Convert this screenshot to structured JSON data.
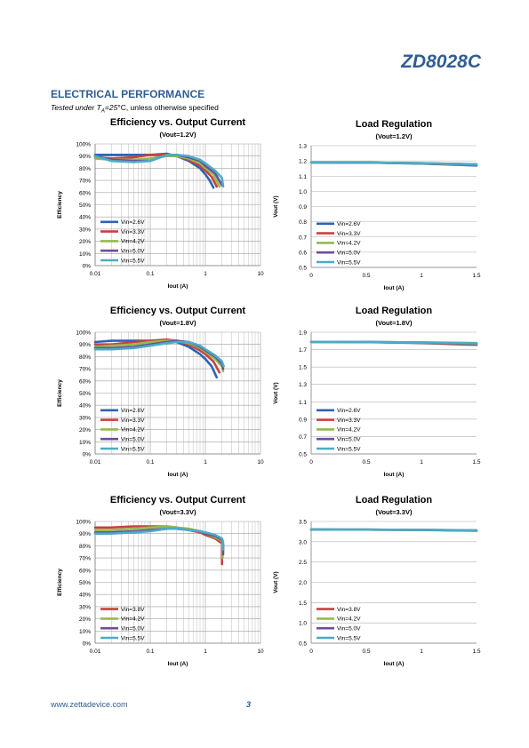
{
  "header": {
    "part_number": "ZD8028C"
  },
  "section": {
    "title": "ELECTRICAL PERFORMANCE",
    "tested_prefix": "Tested under ",
    "tested_t": "T",
    "tested_sub": "A",
    "tested_value": "=25",
    "tested_suffix": "°C, unless otherwise specified"
  },
  "footer": {
    "url": "www.zettadevice.com",
    "page": "3"
  },
  "colors": {
    "s26": "#2e63b6",
    "s33": "#c8413e",
    "s42": "#93ba4f",
    "s50": "#6e4d9b",
    "s55": "#4bacc6",
    "s38": "#c8413e"
  },
  "chart_data": [
    {
      "type": "line",
      "kind": "eff",
      "title": "Efficiency vs. Output Current",
      "subtitle": "(Vout=1.2V)",
      "xlabel": "Iout (A)",
      "ylabel": "Efficiency",
      "xscale": "log",
      "xlim": [
        0.01,
        10
      ],
      "ylim": [
        0,
        100
      ],
      "xticks": [
        "0.01",
        "0.1",
        "1",
        "10"
      ],
      "yticks": [
        "0%",
        "10%",
        "20%",
        "30%",
        "40%",
        "50%",
        "60%",
        "70%",
        "80%",
        "90%",
        "100%"
      ],
      "legend": "bottom-left",
      "series": [
        {
          "name": "Vin=2.6V",
          "color_key": "s26",
          "x": [
            0.01,
            0.02,
            0.05,
            0.1,
            0.2,
            0.3,
            0.5,
            0.8,
            1.0,
            1.2,
            1.4
          ],
          "y": [
            91,
            91,
            91,
            91,
            92,
            90,
            86,
            80,
            75,
            70,
            64
          ]
        },
        {
          "name": "Vin=3.3V",
          "color_key": "s33",
          "x": [
            0.01,
            0.02,
            0.05,
            0.1,
            0.2,
            0.3,
            0.5,
            0.8,
            1.0,
            1.3,
            1.6
          ],
          "y": [
            89,
            88,
            89,
            91,
            91,
            90,
            87,
            82,
            78,
            73,
            65
          ]
        },
        {
          "name": "Vin=4.2V",
          "color_key": "s42",
          "x": [
            0.01,
            0.02,
            0.05,
            0.1,
            0.2,
            0.3,
            0.5,
            0.8,
            1.0,
            1.4,
            1.8
          ],
          "y": [
            88,
            87,
            87,
            88,
            90,
            90,
            88,
            84,
            80,
            75,
            65
          ]
        },
        {
          "name": "Vin=5.0V",
          "color_key": "s50",
          "x": [
            0.01,
            0.02,
            0.05,
            0.1,
            0.2,
            0.3,
            0.5,
            0.8,
            1.0,
            1.5,
            2.0
          ],
          "y": [
            90,
            87,
            86,
            86,
            91,
            91,
            89,
            86,
            82,
            76,
            66
          ]
        },
        {
          "name": "Vin=5.5V",
          "color_key": "s55",
          "x": [
            0.01,
            0.02,
            0.05,
            0.1,
            0.2,
            0.3,
            0.5,
            0.8,
            1.0,
            1.5,
            2.0,
            2.1
          ],
          "y": [
            90,
            86,
            85,
            86,
            91,
            91,
            90,
            87,
            84,
            78,
            72,
            65
          ]
        }
      ]
    },
    {
      "type": "line",
      "kind": "reg",
      "title": "Load Regulation",
      "subtitle": "(Vout=1.2V)",
      "xlabel": "Iout (A)",
      "ylabel": "Vout (V)",
      "xscale": "linear",
      "xlim": [
        0,
        1.5
      ],
      "ylim": [
        0.5,
        1.3
      ],
      "xticks": [
        "0",
        "0.5",
        "1",
        "1.5"
      ],
      "yticks": [
        "0.5",
        "0.6",
        "0.7",
        "0.8",
        "0.9",
        "1.0",
        "1.1",
        "1.2",
        "1.3"
      ],
      "legend": "bottom-left",
      "series": [
        {
          "name": "Vin=2.6V",
          "color_key": "s26",
          "x": [
            0,
            0.5,
            1.0,
            1.5
          ],
          "y": [
            1.19,
            1.189,
            1.182,
            1.17
          ]
        },
        {
          "name": "Vin=3.3V",
          "color_key": "s33",
          "x": [
            0,
            0.5,
            1.0,
            1.5
          ],
          "y": [
            1.19,
            1.189,
            1.183,
            1.173
          ]
        },
        {
          "name": "Vin=4.2V",
          "color_key": "s42",
          "x": [
            0,
            0.5,
            1.0,
            1.5
          ],
          "y": [
            1.19,
            1.189,
            1.184,
            1.175
          ]
        },
        {
          "name": "Vin=5.0V",
          "color_key": "s50",
          "x": [
            0,
            0.5,
            1.0,
            1.5
          ],
          "y": [
            1.19,
            1.189,
            1.185,
            1.177
          ]
        },
        {
          "name": "Vin=5.5V",
          "color_key": "s55",
          "x": [
            0,
            0.5,
            1.0,
            1.5
          ],
          "y": [
            1.19,
            1.189,
            1.185,
            1.178
          ]
        }
      ]
    },
    {
      "type": "line",
      "kind": "eff",
      "title": "Efficiency vs. Output Current",
      "subtitle": "(Vout=1.8V)",
      "xlabel": "Iout (A)",
      "ylabel": "Efficiency",
      "xscale": "log",
      "xlim": [
        0.01,
        10
      ],
      "ylim": [
        0,
        100
      ],
      "xticks": [
        "0.01",
        "0.1",
        "1",
        "10"
      ],
      "yticks": [
        "0%",
        "10%",
        "20%",
        "30%",
        "40%",
        "50%",
        "60%",
        "70%",
        "80%",
        "90%",
        "100%"
      ],
      "legend": "bottom-left",
      "series": [
        {
          "name": "Vin=2.6V",
          "color_key": "s26",
          "x": [
            0.01,
            0.02,
            0.05,
            0.1,
            0.2,
            0.3,
            0.5,
            0.8,
            1.0,
            1.3,
            1.6
          ],
          "y": [
            92,
            93,
            93,
            93,
            93,
            92,
            88,
            82,
            78,
            72,
            63
          ]
        },
        {
          "name": "Vin=3.3V",
          "color_key": "s33",
          "x": [
            0.01,
            0.02,
            0.05,
            0.1,
            0.2,
            0.3,
            0.5,
            0.8,
            1.0,
            1.4,
            1.8
          ],
          "y": [
            90,
            90,
            92,
            93,
            94,
            93,
            90,
            85,
            82,
            76,
            67
          ]
        },
        {
          "name": "Vin=4.2V",
          "color_key": "s42",
          "x": [
            0.01,
            0.02,
            0.05,
            0.1,
            0.2,
            0.3,
            0.5,
            0.8,
            1.0,
            1.5,
            2.0,
            2.1
          ],
          "y": [
            88,
            89,
            90,
            92,
            93,
            93,
            91,
            87,
            84,
            78,
            72,
            68
          ]
        },
        {
          "name": "Vin=5.0V",
          "color_key": "s50",
          "x": [
            0.01,
            0.02,
            0.05,
            0.1,
            0.2,
            0.3,
            0.5,
            0.8,
            1.0,
            1.5,
            2.0,
            2.1
          ],
          "y": [
            87,
            87,
            88,
            90,
            92,
            93,
            92,
            88,
            85,
            80,
            74,
            70
          ]
        },
        {
          "name": "Vin=5.5V",
          "color_key": "s55",
          "x": [
            0.01,
            0.02,
            0.05,
            0.1,
            0.2,
            0.3,
            0.5,
            0.8,
            1.0,
            1.5,
            2.0,
            2.15
          ],
          "y": [
            86,
            86,
            87,
            89,
            91,
            92,
            92,
            89,
            86,
            81,
            76,
            72
          ]
        }
      ]
    },
    {
      "type": "line",
      "kind": "reg",
      "title": "Load Regulation",
      "subtitle": "(Vout=1.8V)",
      "xlabel": "Iout (A)",
      "ylabel": "Vout (V)",
      "xscale": "linear",
      "xlim": [
        0,
        1.5
      ],
      "ylim": [
        0.5,
        1.9
      ],
      "xticks": [
        "0",
        "0.5",
        "1",
        "1.5"
      ],
      "yticks": [
        "0.5",
        "0.7",
        "0.9",
        "1.1",
        "1.3",
        "1.5",
        "1.7",
        "1.9"
      ],
      "legend": "bottom-left",
      "series": [
        {
          "name": "Vin=2.6V",
          "color_key": "s26",
          "x": [
            0,
            0.5,
            1.0,
            1.5
          ],
          "y": [
            1.79,
            1.787,
            1.775,
            1.755
          ]
        },
        {
          "name": "Vin=3.3V",
          "color_key": "s33",
          "x": [
            0,
            0.5,
            1.0,
            1.5
          ],
          "y": [
            1.79,
            1.788,
            1.778,
            1.762
          ]
        },
        {
          "name": "Vin=4.2V",
          "color_key": "s42",
          "x": [
            0,
            0.5,
            1.0,
            1.5
          ],
          "y": [
            1.79,
            1.788,
            1.78,
            1.768
          ]
        },
        {
          "name": "Vin=5.0V",
          "color_key": "s50",
          "x": [
            0,
            0.5,
            1.0,
            1.5
          ],
          "y": [
            1.79,
            1.789,
            1.782,
            1.772
          ]
        },
        {
          "name": "Vin=5.5V",
          "color_key": "s55",
          "x": [
            0,
            0.5,
            1.0,
            1.5
          ],
          "y": [
            1.79,
            1.789,
            1.783,
            1.775
          ]
        }
      ]
    },
    {
      "type": "line",
      "kind": "eff",
      "title": "Efficiency vs. Output Current",
      "subtitle": "(Vout=3.3V)",
      "xlabel": "Iout (A)",
      "ylabel": "Efficiency",
      "xscale": "log",
      "xlim": [
        0.01,
        10
      ],
      "ylim": [
        0,
        100
      ],
      "xticks": [
        "0.01",
        "0.1",
        "1",
        "10"
      ],
      "yticks": [
        "0%",
        "10%",
        "20%",
        "30%",
        "40%",
        "50%",
        "60%",
        "70%",
        "80%",
        "90%",
        "100%"
      ],
      "legend": "bottom-left",
      "series": [
        {
          "name": "Vin=3.8V",
          "color_key": "s38",
          "x": [
            0.01,
            0.02,
            0.05,
            0.1,
            0.2,
            0.3,
            0.5,
            0.8,
            1.0,
            1.5,
            2.0,
            2.0,
            2.0
          ],
          "y": [
            95,
            95,
            96,
            96,
            96,
            95,
            93,
            91,
            89,
            86,
            82,
            75,
            65
          ]
        },
        {
          "name": "Vin=4.2V",
          "color_key": "s42",
          "x": [
            0.01,
            0.02,
            0.05,
            0.1,
            0.2,
            0.3,
            0.5,
            0.8,
            1.0,
            1.5,
            2.0,
            2.05,
            2.05
          ],
          "y": [
            93,
            93,
            94,
            95,
            96,
            95,
            94,
            92,
            90,
            87,
            84,
            78,
            70
          ]
        },
        {
          "name": "Vin=5.0V",
          "color_key": "s50",
          "x": [
            0.01,
            0.02,
            0.05,
            0.1,
            0.2,
            0.3,
            0.5,
            0.8,
            1.0,
            1.5,
            2.0,
            2.1,
            2.1
          ],
          "y": [
            91,
            91,
            92,
            93,
            94,
            94,
            93,
            92,
            90,
            88,
            85,
            81,
            73
          ]
        },
        {
          "name": "Vin=5.5V",
          "color_key": "s55",
          "x": [
            0.01,
            0.02,
            0.05,
            0.1,
            0.2,
            0.3,
            0.5,
            0.8,
            1.0,
            1.5,
            2.0,
            2.1,
            2.1
          ],
          "y": [
            90,
            90,
            91,
            92,
            94,
            94,
            93,
            92,
            91,
            89,
            86,
            83,
            77
          ]
        }
      ]
    },
    {
      "type": "line",
      "kind": "reg",
      "title": "Load Regulation",
      "subtitle": "(Vout=3.3V)",
      "xlabel": "Iout (A)",
      "ylabel": "Vout (V)",
      "xscale": "linear",
      "xlim": [
        0,
        1.5
      ],
      "ylim": [
        0.5,
        3.5
      ],
      "xticks": [
        "0",
        "0.5",
        "1",
        "1.5"
      ],
      "yticks": [
        "0.5",
        "1.0",
        "1.5",
        "2.0",
        "2.5",
        "3.0",
        "3.5"
      ],
      "legend": "bottom-left",
      "series": [
        {
          "name": "Vin=3.8V",
          "color_key": "s38",
          "x": [
            0,
            0.5,
            1.0,
            1.5
          ],
          "y": [
            3.3,
            3.298,
            3.29,
            3.27
          ]
        },
        {
          "name": "Vin=4.2V",
          "color_key": "s42",
          "x": [
            0,
            0.5,
            1.0,
            1.5
          ],
          "y": [
            3.3,
            3.298,
            3.292,
            3.275
          ]
        },
        {
          "name": "Vin=5.0V",
          "color_key": "s50",
          "x": [
            0,
            0.5,
            1.0,
            1.5
          ],
          "y": [
            3.3,
            3.299,
            3.293,
            3.28
          ]
        },
        {
          "name": "Vin=5.5V",
          "color_key": "s55",
          "x": [
            0,
            0.5,
            1.0,
            1.5
          ],
          "y": [
            3.3,
            3.299,
            3.294,
            3.283
          ]
        }
      ]
    }
  ]
}
